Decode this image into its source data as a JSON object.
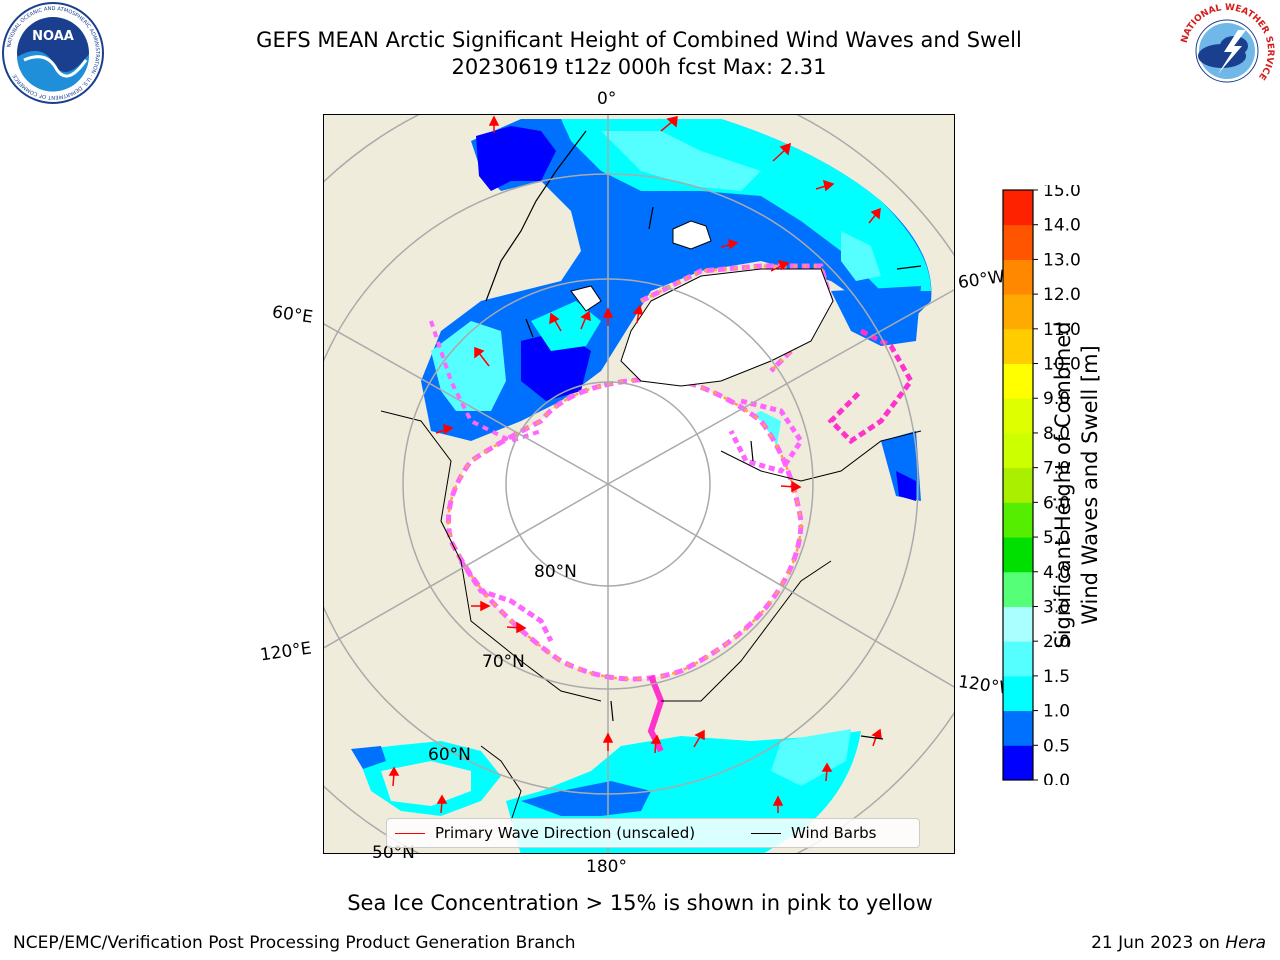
{
  "title_line1": "GEFS MEAN Arctic Significant Height of Combined Wind Waves and Swell",
  "title_line2": "20230619 t12z 000h fcst   Max: 2.31",
  "map": {
    "longitude_labels": {
      "top": "0°",
      "left_upper": "60°E",
      "left_lower": "120°E",
      "right_upper": "60°W",
      "right_lower": "120°W",
      "bottom": "180°"
    },
    "latitude_labels": {
      "lat80": "80°N",
      "lat70": "70°N",
      "lat60": "60°N",
      "lat50": "50°N"
    },
    "colors": {
      "land": "#efecdc",
      "ice_pink": "#ff66ff",
      "ice_orange": "#ffa050",
      "ice_magenta": "#ff33cc",
      "wave_blue": "#0070ff",
      "wave_dark_blue": "#0000ff",
      "wave_cyan": "#00ffff",
      "wave_light_cyan": "#55ffff",
      "arrow_red": "#ff0000"
    }
  },
  "colorbar": {
    "title_line1": "Significant Height of Combined",
    "title_line2": "Wind Waves and Swell [m]",
    "ticks": [
      "0.0",
      "0.5",
      "1.0",
      "1.5",
      "2.0",
      "3.0",
      "4.0",
      "5.0",
      "6.0",
      "7.0",
      "8.0",
      "9.0",
      "10.0",
      "11.0",
      "12.0",
      "13.0",
      "14.0",
      "15.0"
    ],
    "bins": [
      {
        "from": 0.0,
        "to": 0.5,
        "color": "#0000ff"
      },
      {
        "from": 0.5,
        "to": 1.0,
        "color": "#0070ff"
      },
      {
        "from": 1.0,
        "to": 1.5,
        "color": "#00ffff"
      },
      {
        "from": 1.5,
        "to": 2.0,
        "color": "#55ffff"
      },
      {
        "from": 2.0,
        "to": 3.0,
        "color": "#aaffff"
      },
      {
        "from": 3.0,
        "to": 4.0,
        "color": "#55ff77"
      },
      {
        "from": 4.0,
        "to": 5.0,
        "color": "#00e000"
      },
      {
        "from": 5.0,
        "to": 6.0,
        "color": "#55ee00"
      },
      {
        "from": 6.0,
        "to": 7.0,
        "color": "#aaee00"
      },
      {
        "from": 7.0,
        "to": 8.0,
        "color": "#ccff00"
      },
      {
        "from": 8.0,
        "to": 9.0,
        "color": "#ddff00"
      },
      {
        "from": 9.0,
        "to": 10.0,
        "color": "#ffff00"
      },
      {
        "from": 10.0,
        "to": 11.0,
        "color": "#ffcc00"
      },
      {
        "from": 11.0,
        "to": 12.0,
        "color": "#ffaa00"
      },
      {
        "from": 12.0,
        "to": 13.0,
        "color": "#ff8800"
      },
      {
        "from": 13.0,
        "to": 14.0,
        "color": "#ff5500"
      },
      {
        "from": 14.0,
        "to": 15.0,
        "color": "#ff2200"
      },
      {
        "from": 15.0,
        "to": 15.0,
        "color": "#ff0000"
      }
    ]
  },
  "legend": {
    "primary_wave": "Primary Wave Direction (unscaled)",
    "wind_barbs": "Wind Barbs",
    "primary_wave_color": "#ff0000",
    "wind_barbs_color": "#000000"
  },
  "note": "Sea Ice Concentration > 15% is shown in pink to yellow",
  "footer_left": "NCEP/EMC/Verification Post Processing Product Generation Branch",
  "footer_right_date": "21 Jun 2023 on ",
  "footer_right_machine": "Hera",
  "logos": {
    "noaa_text": "NOAA",
    "noaa_ring_text": "NATIONAL OCEANIC AND ATMOSPHERIC ADMINISTRATION · U.S. DEPARTMENT OF COMMERCE",
    "nws_ring_text": "NATIONAL WEATHER SERVICE"
  }
}
